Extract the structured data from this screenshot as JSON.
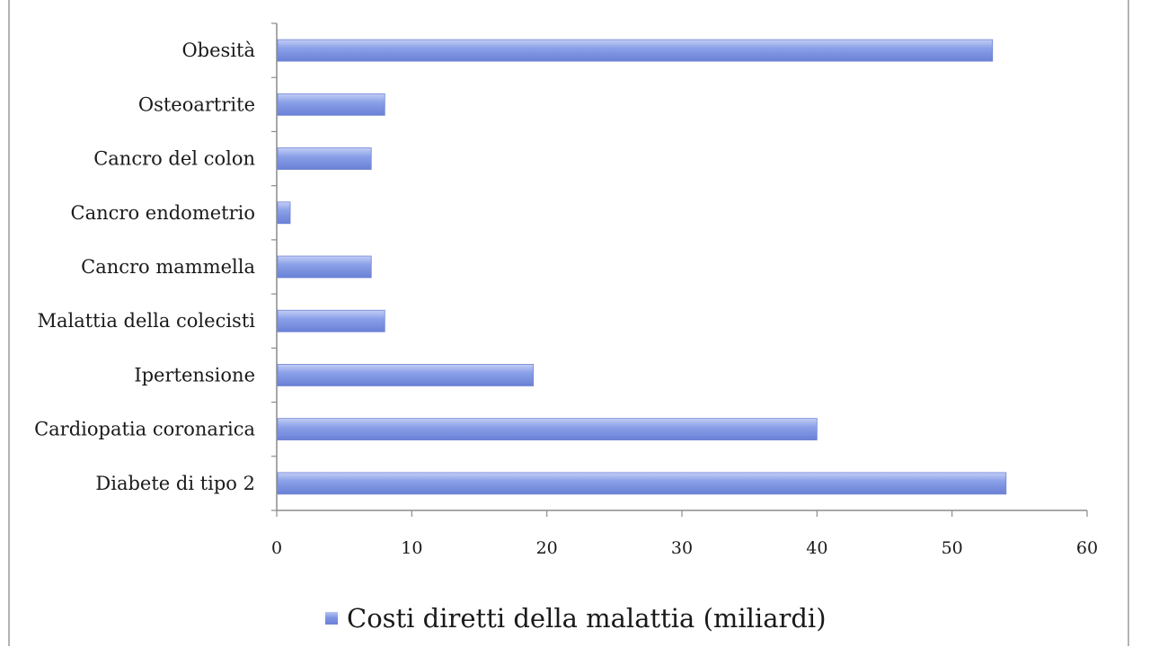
{
  "chart_data": {
    "type": "bar",
    "orientation": "horizontal",
    "categories": [
      "Obesità",
      "Osteoartrite",
      "Cancro del colon",
      "Cancro endometrio",
      "Cancro mammella",
      "Malattia della colecisti",
      "Ipertensione",
      "Cardiopatia coronarica",
      "Diabete di tipo 2"
    ],
    "series": [
      {
        "name": "Costi diretti della malattia (miliardi)",
        "values": [
          53,
          8,
          7,
          1,
          7,
          8,
          19,
          40,
          54
        ]
      }
    ],
    "title": "",
    "xlabel": "",
    "ylabel": "",
    "xlim": [
      0,
      60
    ],
    "xticks": [
      0,
      10,
      20,
      30,
      40,
      50,
      60
    ],
    "grid": false,
    "legend_position": "bottom",
    "bar_color": "#7d93e2"
  }
}
